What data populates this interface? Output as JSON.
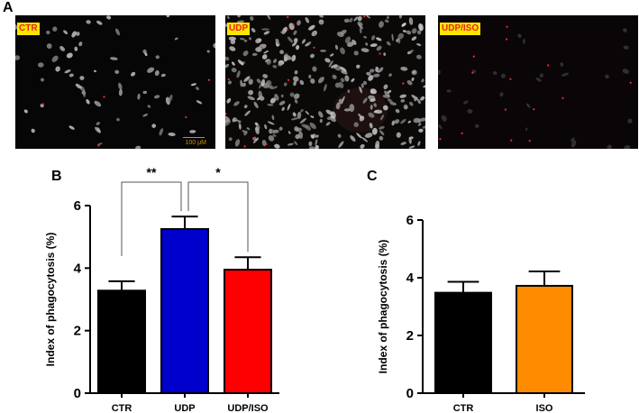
{
  "panel_letters": [
    "A",
    "B",
    "C"
  ],
  "micrographs": [
    {
      "label": "CTR",
      "scale_text": "100 μM",
      "cell_count": 70,
      "cell_color": "#8c8c8c",
      "red_dots": 5,
      "bg": "#060606"
    },
    {
      "label": "UDP",
      "scale_text": "",
      "cell_count": 320,
      "cell_color": "#9a9a9a",
      "red_dots": 14,
      "bg": "#0b0908"
    },
    {
      "label": "UDP/ISO",
      "scale_text": "",
      "cell_count": 28,
      "cell_color": "#3a3a3a",
      "red_dots": 14,
      "bg": "#0a0506"
    }
  ],
  "chart_data": [
    {
      "type": "bar",
      "panel": "B",
      "ylabel": "Index of phagocytosis (%)",
      "xlabel": "",
      "ylim": [
        0,
        6
      ],
      "yticks": [
        0,
        2,
        4,
        6
      ],
      "categories": [
        "CTR",
        "UDP",
        "UDP/ISO"
      ],
      "values": [
        3.28,
        5.25,
        3.95
      ],
      "errors": [
        0.3,
        0.4,
        0.4
      ],
      "colors": [
        "#000000",
        "#0000cc",
        "#ff0000"
      ],
      "significance": [
        {
          "from": 0,
          "to": 1,
          "label": "**"
        },
        {
          "from": 1,
          "to": 2,
          "label": "*"
        }
      ]
    },
    {
      "type": "bar",
      "panel": "C",
      "ylabel": "Index of phagocytosis (%)",
      "xlabel": "",
      "ylim": [
        0,
        6
      ],
      "yticks": [
        0,
        2,
        4,
        6
      ],
      "categories": [
        "CTR",
        "ISO"
      ],
      "values": [
        3.48,
        3.72
      ],
      "errors": [
        0.38,
        0.5
      ],
      "colors": [
        "#000000",
        "#ff8c00"
      ],
      "significance": []
    }
  ]
}
